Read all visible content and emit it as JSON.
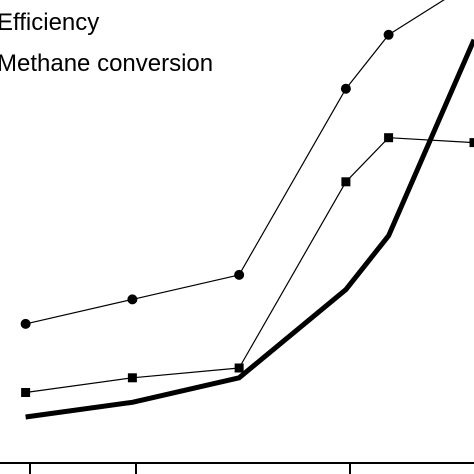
{
  "chart_data": {
    "type": "line",
    "title": "",
    "xlabel": "",
    "ylabel": "",
    "grid": false,
    "legend_position": "top-left",
    "x": [
      -2,
      0.5,
      3,
      5.5,
      6.5,
      8.5
    ],
    "xlim": [
      -2.6,
      8.5
    ],
    "ylim": [
      0,
      100
    ],
    "series": [
      {
        "name": "Efficiency",
        "marker": "circle",
        "stroke_width": 1.2,
        "color": "#000000",
        "values": [
          29,
          34,
          39,
          77,
          88,
          99
        ]
      },
      {
        "name": "Methane conversion",
        "marker": "square",
        "stroke_width": 1.2,
        "color": "#000000",
        "values": [
          15,
          18,
          20,
          58,
          67,
          66
        ]
      },
      {
        "name": "",
        "marker": "none",
        "stroke_width": 5,
        "color": "#000000",
        "values": [
          10,
          13,
          18,
          36,
          47,
          87
        ]
      }
    ]
  }
}
